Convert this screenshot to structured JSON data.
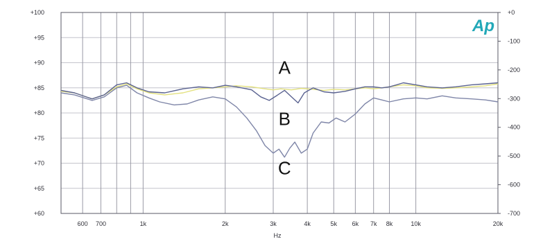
{
  "chart_data": {
    "type": "line",
    "xlabel": "Hz",
    "ylabel": "",
    "xscale": "log",
    "xlim": [
      500,
      20000
    ],
    "ylim": [
      60,
      100
    ],
    "y2lim": [
      -700,
      0
    ],
    "grid": true,
    "x_ticks": [
      {
        "value": 600,
        "label": "600"
      },
      {
        "value": 700,
        "label": "700"
      },
      {
        "value": 800,
        "label": ""
      },
      {
        "value": 900,
        "label": ""
      },
      {
        "value": 1000,
        "label": "1k"
      },
      {
        "value": 2000,
        "label": "2k"
      },
      {
        "value": 3000,
        "label": "3k"
      },
      {
        "value": 4000,
        "label": "4k"
      },
      {
        "value": 5000,
        "label": "5k"
      },
      {
        "value": 6000,
        "label": "6k"
      },
      {
        "value": 7000,
        "label": "7k"
      },
      {
        "value": 8000,
        "label": "8k"
      },
      {
        "value": 10000,
        "label": "10k"
      },
      {
        "value": 20000,
        "label": "20k"
      }
    ],
    "y_ticks": [
      {
        "value": 100,
        "label": "+100"
      },
      {
        "value": 95,
        "label": "+95"
      },
      {
        "value": 90,
        "label": "+90"
      },
      {
        "value": 85,
        "label": "+85"
      },
      {
        "value": 80,
        "label": "+80"
      },
      {
        "value": 75,
        "label": "+75"
      },
      {
        "value": 70,
        "label": "+70"
      },
      {
        "value": 65,
        "label": "+65"
      },
      {
        "value": 60,
        "label": "+60"
      }
    ],
    "y2_ticks": [
      {
        "value": 0,
        "label": "+0"
      },
      {
        "value": -100,
        "label": "-100"
      },
      {
        "value": -200,
        "label": "-200"
      },
      {
        "value": -300,
        "label": "-300"
      },
      {
        "value": -400,
        "label": "-400"
      },
      {
        "value": -500,
        "label": "-500"
      },
      {
        "value": -600,
        "label": "-600"
      },
      {
        "value": -700,
        "label": "-700"
      }
    ],
    "logo": "Ap",
    "annotations": [
      {
        "text": "A",
        "x": 3300,
        "y": 87.8
      },
      {
        "text": "B",
        "x": 3300,
        "y": 77.6
      },
      {
        "text": "C",
        "x": 3300,
        "y": 67.8
      }
    ],
    "series": [
      {
        "color": "#e3e17e",
        "x": [
          500,
          560,
          650,
          720,
          800,
          870,
          950,
          1050,
          1200,
          1400,
          1600,
          1800,
          2000,
          2200,
          2500,
          2800,
          3000,
          3200,
          3500,
          3800,
          4200,
          4600,
          5000,
          5500,
          6000,
          6500,
          7000,
          7500,
          8000,
          8500,
          9000,
          10000,
          11000,
          12500,
          14000,
          16000,
          18000,
          20000
        ],
        "y": [
          84.3,
          84.0,
          82.8,
          83.6,
          85.2,
          85.8,
          84.8,
          84.0,
          83.6,
          84.0,
          84.8,
          85.0,
          85.2,
          85.4,
          85.2,
          84.8,
          84.6,
          84.8,
          84.6,
          84.9,
          84.7,
          84.5,
          84.7,
          84.6,
          84.8,
          85.0,
          84.8,
          85.0,
          85.2,
          85.4,
          85.6,
          85.4,
          85.0,
          84.9,
          85.0,
          85.2,
          85.4,
          85.8
        ]
      },
      {
        "color": "#5a6290",
        "x": [
          500,
          560,
          650,
          720,
          800,
          870,
          950,
          1050,
          1200,
          1400,
          1600,
          1800,
          2000,
          2200,
          2500,
          2700,
          2900,
          3100,
          3300,
          3500,
          3700,
          3900,
          4200,
          4600,
          5000,
          5500,
          6000,
          6500,
          7000,
          7500,
          8000,
          8500,
          9000,
          10000,
          11000,
          12500,
          14000,
          16000,
          18000,
          20000
        ],
        "y": [
          84.5,
          84.0,
          82.8,
          83.6,
          85.6,
          86.0,
          85.0,
          84.2,
          84.0,
          84.8,
          85.2,
          85.0,
          85.5,
          85.2,
          84.6,
          83.2,
          82.5,
          83.5,
          84.5,
          83.2,
          82.0,
          84.0,
          85.0,
          84.2,
          84.0,
          84.3,
          84.8,
          85.2,
          85.2,
          85.0,
          85.2,
          85.6,
          86.0,
          85.6,
          85.2,
          85.0,
          85.2,
          85.6,
          85.8,
          86.0
        ]
      },
      {
        "color": "#7f86a8",
        "x": [
          500,
          560,
          650,
          720,
          800,
          870,
          950,
          1050,
          1150,
          1300,
          1450,
          1600,
          1800,
          2000,
          2200,
          2400,
          2600,
          2800,
          3000,
          3150,
          3300,
          3450,
          3600,
          3800,
          4000,
          4200,
          4500,
          4800,
          5100,
          5500,
          6000,
          6500,
          7000,
          7500,
          8000,
          9000,
          10000,
          11000,
          12500,
          14000,
          16000,
          18000,
          20000
        ],
        "y": [
          84.0,
          83.6,
          82.5,
          83.2,
          85.0,
          85.5,
          84.0,
          83.0,
          82.2,
          81.6,
          81.8,
          82.6,
          83.2,
          82.8,
          81.2,
          79.0,
          76.5,
          73.5,
          72.0,
          72.8,
          71.2,
          73.0,
          74.2,
          72.0,
          72.8,
          76.0,
          78.2,
          78.0,
          79.0,
          78.2,
          79.8,
          81.8,
          83.0,
          82.6,
          82.2,
          82.8,
          83.0,
          82.8,
          83.4,
          83.0,
          82.8,
          82.6,
          82.2
        ]
      }
    ]
  }
}
